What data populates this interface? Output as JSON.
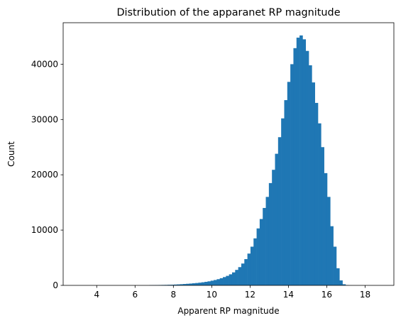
{
  "chart_data": {
    "type": "bar",
    "title": "Distribution of the apparanet RP magnitude",
    "xlabel": "Apparent RP magnitude",
    "ylabel": "Count",
    "xlim": [
      2.25,
      19.5
    ],
    "ylim": [
      0,
      47500
    ],
    "xticks": [
      4,
      6,
      8,
      10,
      12,
      14,
      16,
      18
    ],
    "yticks": [
      0,
      10000,
      20000,
      30000,
      40000
    ],
    "grid": false,
    "bar_color": "#1f77b4",
    "bin_width": 0.16,
    "bin_start": 2.9,
    "values": [
      0,
      0,
      0,
      0,
      0,
      0,
      0,
      0,
      0,
      0,
      0,
      0,
      0,
      0,
      0,
      0,
      0,
      0,
      0,
      0,
      0,
      0,
      0,
      0,
      40,
      50,
      60,
      70,
      80,
      90,
      110,
      120,
      150,
      180,
      210,
      250,
      290,
      330,
      380,
      430,
      490,
      560,
      640,
      730,
      850,
      970,
      1120,
      1300,
      1500,
      1720,
      2000,
      2350,
      2800,
      3300,
      3950,
      4750,
      5750,
      7000,
      8500,
      10300,
      12000,
      14000,
      16000,
      18500,
      20900,
      23800,
      26800,
      30200,
      33500,
      36800,
      40000,
      42900,
      44800,
      45200,
      44500,
      42400,
      39800,
      36700,
      33000,
      29300,
      25000,
      20300,
      16000,
      10700,
      7000,
      3100,
      900,
      200,
      50,
      10
    ]
  }
}
